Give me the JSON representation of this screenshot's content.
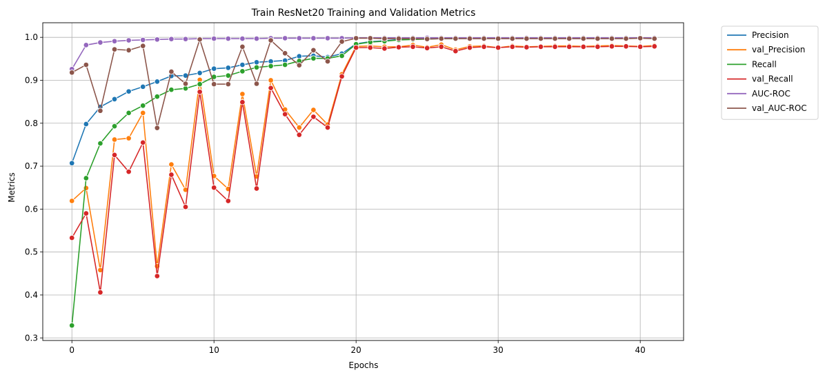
{
  "chart_data": {
    "type": "line",
    "title": "Train ResNet20 Training and Validation Metrics",
    "xlabel": "Epochs",
    "ylabel": "Metrics",
    "xlim": [
      -2.05,
      43.05
    ],
    "ylim": [
      0.294,
      1.034
    ],
    "xticks": [
      0,
      10,
      20,
      30,
      40
    ],
    "yticks": [
      0.3,
      0.4,
      0.5,
      0.6,
      0.7,
      0.8,
      0.9,
      1.0
    ],
    "ytick_labels": [
      "0.3",
      "0.4",
      "0.5",
      "0.6",
      "0.7",
      "0.8",
      "0.9",
      "1.0"
    ],
    "grid": true,
    "legend_position": "outside-top-right",
    "x": [
      0,
      1,
      2,
      3,
      4,
      5,
      6,
      7,
      8,
      9,
      10,
      11,
      12,
      13,
      14,
      15,
      16,
      17,
      18,
      19,
      20,
      21,
      22,
      23,
      24,
      25,
      26,
      27,
      28,
      29,
      30,
      31,
      32,
      33,
      34,
      35,
      36,
      37,
      38,
      39,
      40,
      41
    ],
    "series": [
      {
        "name": "Precision",
        "color": "#1f77b4",
        "values": [
          0.707,
          0.798,
          0.838,
          0.856,
          0.874,
          0.885,
          0.897,
          0.91,
          0.911,
          0.917,
          0.927,
          0.929,
          0.936,
          0.942,
          0.944,
          0.946,
          0.956,
          0.957,
          0.954,
          0.962,
          0.985,
          0.99,
          0.992,
          0.995,
          0.996,
          0.997,
          0.997,
          0.998,
          0.998,
          0.998,
          0.998,
          0.999,
          0.999,
          0.999,
          0.999,
          0.999,
          0.999,
          0.999,
          0.999,
          0.999,
          0.999,
          0.999
        ]
      },
      {
        "name": "val_Precision",
        "color": "#ff7f0e",
        "values": [
          0.619,
          0.649,
          0.458,
          0.762,
          0.765,
          0.824,
          0.467,
          0.704,
          0.645,
          0.901,
          0.677,
          0.647,
          0.868,
          0.676,
          0.9,
          0.832,
          0.79,
          0.831,
          0.797,
          0.914,
          0.979,
          0.98,
          0.978,
          0.978,
          0.982,
          0.977,
          0.983,
          0.971,
          0.979,
          0.98,
          0.976,
          0.98,
          0.978,
          0.979,
          0.98,
          0.98,
          0.979,
          0.98,
          0.981,
          0.98,
          0.979,
          0.981
        ]
      },
      {
        "name": "Recall",
        "color": "#2ca02c",
        "values": [
          0.329,
          0.672,
          0.753,
          0.793,
          0.824,
          0.841,
          0.862,
          0.878,
          0.881,
          0.891,
          0.908,
          0.911,
          0.921,
          0.93,
          0.933,
          0.936,
          0.945,
          0.951,
          0.951,
          0.957,
          0.984,
          0.989,
          0.991,
          0.994,
          0.995,
          0.996,
          0.997,
          0.997,
          0.998,
          0.998,
          0.998,
          0.998,
          0.998,
          0.998,
          0.999,
          0.999,
          0.999,
          0.999,
          0.999,
          0.999,
          0.999,
          0.999
        ]
      },
      {
        "name": "val_Recall",
        "color": "#d62728",
        "values": [
          0.533,
          0.59,
          0.406,
          0.726,
          0.687,
          0.755,
          0.444,
          0.68,
          0.605,
          0.873,
          0.65,
          0.619,
          0.849,
          0.648,
          0.882,
          0.821,
          0.773,
          0.815,
          0.79,
          0.909,
          0.976,
          0.976,
          0.974,
          0.977,
          0.978,
          0.975,
          0.978,
          0.968,
          0.976,
          0.978,
          0.976,
          0.978,
          0.977,
          0.978,
          0.978,
          0.978,
          0.978,
          0.978,
          0.979,
          0.979,
          0.978,
          0.979
        ]
      },
      {
        "name": "AUC-ROC",
        "color": "#9467bd",
        "values": [
          0.926,
          0.982,
          0.988,
          0.991,
          0.993,
          0.994,
          0.995,
          0.996,
          0.996,
          0.997,
          0.997,
          0.997,
          0.997,
          0.997,
          0.998,
          0.998,
          0.998,
          0.998,
          0.998,
          0.998,
          0.999,
          0.999,
          0.999,
          0.999,
          0.999,
          0.999,
          0.999,
          0.999,
          0.999,
          0.999,
          0.999,
          0.999,
          0.999,
          0.999,
          0.999,
          0.999,
          0.999,
          0.999,
          0.999,
          0.999,
          0.999,
          0.999
        ]
      },
      {
        "name": "val_AUC-ROC",
        "color": "#8c564b",
        "values": [
          0.918,
          0.936,
          0.829,
          0.972,
          0.97,
          0.98,
          0.789,
          0.92,
          0.892,
          0.995,
          0.891,
          0.891,
          0.978,
          0.892,
          0.993,
          0.963,
          0.935,
          0.97,
          0.944,
          0.99,
          0.998,
          0.998,
          0.997,
          0.997,
          0.997,
          0.996,
          0.997,
          0.997,
          0.997,
          0.997,
          0.997,
          0.997,
          0.997,
          0.997,
          0.997,
          0.997,
          0.997,
          0.997,
          0.997,
          0.997,
          0.998,
          0.997
        ]
      }
    ]
  }
}
